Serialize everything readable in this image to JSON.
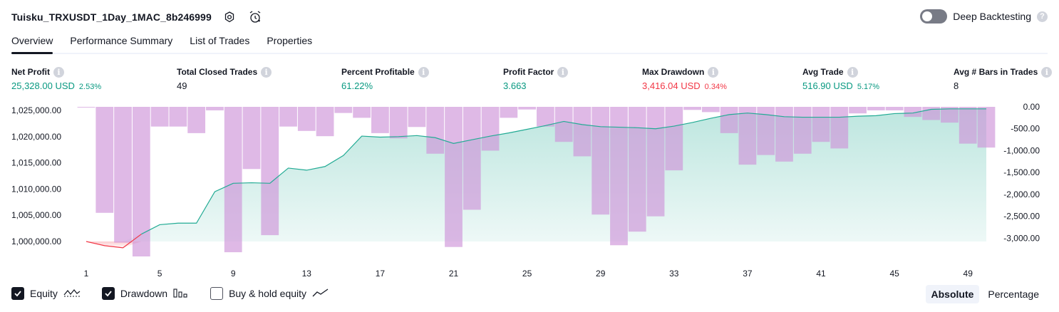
{
  "header": {
    "title": "Tuisku_TRXUSDT_1Day_1MAC_8b246999"
  },
  "deep_backtesting": {
    "label": "Deep Backtesting",
    "help": "?"
  },
  "tabs": [
    {
      "label": "Overview"
    },
    {
      "label": "Performance Summary"
    },
    {
      "label": "List of Trades"
    },
    {
      "label": "Properties"
    }
  ],
  "metrics": [
    {
      "label": "Net Profit",
      "value": "25,328.00 USD",
      "pct": "2.53%",
      "color": "#089981"
    },
    {
      "label": "Total Closed Trades",
      "value": "49",
      "pct": "",
      "color": "#131722"
    },
    {
      "label": "Percent Profitable",
      "value": "61.22%",
      "pct": "",
      "color": "#089981"
    },
    {
      "label": "Profit Factor",
      "value": "3.663",
      "pct": "",
      "color": "#089981"
    },
    {
      "label": "Max Drawdown",
      "value": "3,416.04 USD",
      "pct": "0.34%",
      "color": "#f23645"
    },
    {
      "label": "Avg Trade",
      "value": "516.90 USD",
      "pct": "5.17%",
      "color": "#089981"
    },
    {
      "label": "Avg # Bars in Trades",
      "value": "8",
      "pct": "",
      "color": "#131722"
    }
  ],
  "legend": {
    "equity": "Equity",
    "drawdown": "Drawdown",
    "buy_hold": "Buy & hold equity"
  },
  "mode": {
    "absolute": "Absolute",
    "percentage": "Percentage"
  },
  "chart_data": {
    "type": "area",
    "x": [
      1,
      2,
      3,
      4,
      5,
      6,
      7,
      8,
      9,
      10,
      11,
      12,
      13,
      14,
      15,
      16,
      17,
      18,
      19,
      20,
      21,
      22,
      23,
      24,
      25,
      26,
      27,
      28,
      29,
      30,
      31,
      32,
      33,
      34,
      35,
      36,
      37,
      38,
      39,
      40,
      41,
      42,
      43,
      44,
      45,
      46,
      47,
      48,
      49,
      50
    ],
    "x_ticks": [
      "1",
      "5",
      "9",
      "13",
      "17",
      "21",
      "25",
      "29",
      "33",
      "37",
      "41",
      "45",
      "49"
    ],
    "left_axis": {
      "ticks": [
        "1,025,000.00",
        "1,020,000.00",
        "1,015,000.00",
        "1,010,000.00",
        "1,005,000.00",
        "1,000,000.00"
      ],
      "range": [
        999000,
        1026000
      ]
    },
    "right_axis": {
      "ticks": [
        "0.00",
        "-500.00",
        "-1,000.00",
        "-1,500.00",
        "-2,000.00",
        "-2,500.00",
        "-3,000.00"
      ],
      "range": [
        -3416,
        0
      ]
    },
    "series": [
      {
        "name": "Equity",
        "color": "#22ab94",
        "below_start_color": "#f23645",
        "values": [
          1000000,
          999200,
          998800,
          1001400,
          1003200,
          1003500,
          1003500,
          1009500,
          1011100,
          1011200,
          1011100,
          1014000,
          1013600,
          1014300,
          1016400,
          1020100,
          1019900,
          1020000,
          1020200,
          1019800,
          1018700,
          1019400,
          1020100,
          1020700,
          1021400,
          1022100,
          1022900,
          1022300,
          1021900,
          1021800,
          1021700,
          1021500,
          1022000,
          1022700,
          1023500,
          1024200,
          1024500,
          1024200,
          1023800,
          1023700,
          1023700,
          1023700,
          1023900,
          1024000,
          1024400,
          1024500,
          1025200,
          1025300,
          1025300,
          1025300
        ]
      },
      {
        "name": "Drawdown",
        "color": "#ce93d8",
        "values": [
          -10,
          -2420,
          -3100,
          -3416,
          -450,
          -450,
          -600,
          -80,
          -3320,
          -1420,
          -2930,
          -450,
          -550,
          -670,
          -140,
          -250,
          -600,
          -720,
          -460,
          -1070,
          -3200,
          -2350,
          -1000,
          -250,
          -60,
          -450,
          -800,
          -1130,
          -2460,
          -3160,
          -2850,
          -2500,
          -1450,
          -70,
          -120,
          -600,
          -1320,
          -1100,
          -1250,
          -1070,
          -800,
          -950,
          -150,
          -80,
          -80,
          -230,
          -300,
          -360,
          -840,
          -930
        ]
      }
    ]
  }
}
